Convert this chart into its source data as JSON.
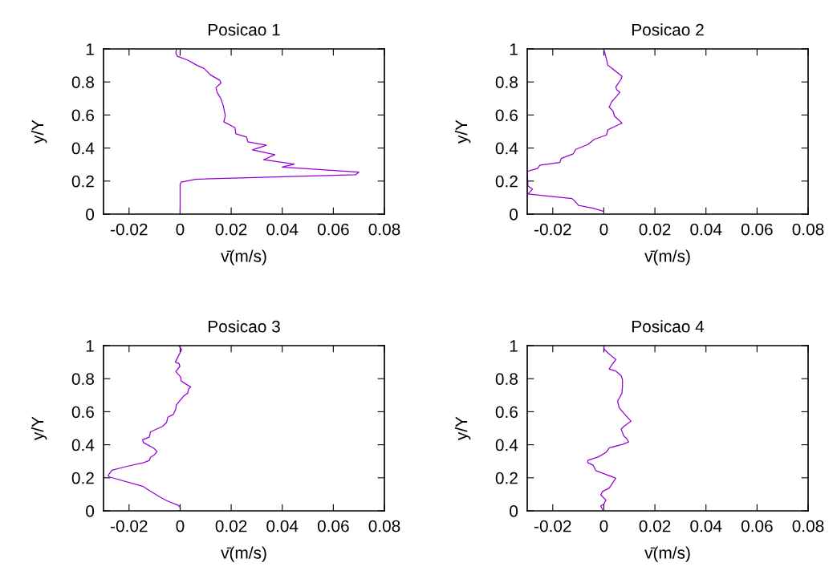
{
  "chart_data": [
    {
      "type": "line",
      "title": "Posicao 1",
      "xlabel": "v̄(m/s)",
      "ylabel": "y/Y",
      "xlim": [
        -0.03,
        0.08
      ],
      "ylim": [
        0,
        1
      ],
      "xticks": [
        -0.02,
        0,
        0.02,
        0.04,
        0.06,
        0.08
      ],
      "yticks": [
        0,
        0.2,
        0.4,
        0.6,
        0.8,
        1
      ],
      "grid": false,
      "series": [
        {
          "color": "#9400d3",
          "x": [
            0,
            0,
            0.0004,
            0.006,
            0.0687,
            0.07,
            0.04,
            0.0447,
            0.0327,
            0.0371,
            0.0283,
            0.0338,
            0.0265,
            0.026,
            0.0218,
            0.0215,
            0.0171,
            0.0177,
            0.0169,
            0.016,
            0.0145,
            0.014,
            0.016,
            0.0155,
            0.0119,
            0.0093,
            0.0067,
            0.003,
            -0.0011,
            -0.0017,
            -0.0014
          ],
          "values": [
            0,
            0.178,
            0.194,
            0.211,
            0.238,
            0.254,
            0.285,
            0.303,
            0.329,
            0.36,
            0.389,
            0.417,
            0.438,
            0.467,
            0.486,
            0.523,
            0.559,
            0.595,
            0.656,
            0.697,
            0.737,
            0.765,
            0.794,
            0.81,
            0.843,
            0.883,
            0.9,
            0.932,
            0.956,
            0.976,
            0.997
          ]
        }
      ]
    },
    {
      "type": "line",
      "title": "Posicao 2",
      "xlabel": "v̄(m/s)",
      "ylabel": "y/Y",
      "xlim": [
        -0.03,
        0.08
      ],
      "ylim": [
        0,
        1
      ],
      "xticks": [
        -0.02,
        0,
        0.02,
        0.04,
        0.06,
        0.08
      ],
      "yticks": [
        0,
        0.2,
        0.4,
        0.6,
        0.8,
        1
      ],
      "grid": false,
      "series": [
        {
          "color": "#9400d3",
          "x": [
            0,
            -0.0042,
            -0.0099,
            -0.0115,
            -0.0125,
            -0.0297,
            -0.0279,
            -0.0297,
            -0.03,
            -0.026,
            -0.025,
            -0.0172,
            -0.0167,
            -0.012,
            -0.011,
            -0.0063,
            -0.0036,
            0.001,
            0.0016,
            0.0071,
            0.0057,
            0.0042,
            0.0036,
            0.0021,
            0.0031,
            0.0042,
            0.0063,
            0.005,
            0.0047,
            0.0068,
            0.0071,
            0.0031,
            0.0016,
            0.001,
            0
          ],
          "values": [
            0.016,
            0.036,
            0.053,
            0.081,
            0.094,
            0.122,
            0.151,
            0.17,
            0.259,
            0.276,
            0.297,
            0.313,
            0.337,
            0.365,
            0.392,
            0.421,
            0.454,
            0.478,
            0.511,
            0.551,
            0.572,
            0.592,
            0.624,
            0.648,
            0.681,
            0.7,
            0.737,
            0.754,
            0.77,
            0.818,
            0.835,
            0.883,
            0.9,
            0.94,
            0.997
          ]
        }
      ]
    },
    {
      "type": "line",
      "title": "Posicao 3",
      "xlabel": "v̄(m/s)",
      "ylabel": "y/Y",
      "xlim": [
        -0.03,
        0.08
      ],
      "ylim": [
        0,
        1
      ],
      "xticks": [
        -0.02,
        0,
        0.02,
        0.04,
        0.06,
        0.08
      ],
      "yticks": [
        0,
        0.2,
        0.4,
        0.6,
        0.8,
        1
      ],
      "grid": false,
      "series": [
        {
          "color": "#9400d3",
          "x": [
            0.0002,
            -0.0006,
            -0.0053,
            -0.0079,
            -0.011,
            -0.0147,
            -0.0277,
            -0.0282,
            -0.0267,
            -0.0215,
            -0.0142,
            -0.0121,
            -0.0116,
            -0.01,
            -0.009,
            -0.0105,
            -0.0144,
            -0.0147,
            -0.0121,
            -0.0116,
            -0.0069,
            -0.0053,
            -0.0048,
            -0.0027,
            -0.0017,
            -0.0015,
            0.0015,
            0.003,
            0.0033,
            0.0041,
            0.002,
            0.0004,
            0.0002,
            -0.0017,
            -0.0001,
            -0.0004,
            -0.0019,
            -0.0011,
            0.0006,
            -0.0004
          ],
          "values": [
            0.016,
            0.032,
            0.062,
            0.084,
            0.113,
            0.149,
            0.205,
            0.214,
            0.246,
            0.267,
            0.292,
            0.305,
            0.324,
            0.34,
            0.36,
            0.381,
            0.413,
            0.43,
            0.446,
            0.478,
            0.511,
            0.535,
            0.567,
            0.583,
            0.616,
            0.64,
            0.697,
            0.713,
            0.737,
            0.75,
            0.77,
            0.786,
            0.81,
            0.843,
            0.875,
            0.891,
            0.9,
            0.924,
            0.976,
            0.997
          ]
        }
      ]
    },
    {
      "type": "line",
      "title": "Posicao 4",
      "xlabel": "v̄(m/s)",
      "ylabel": "y/Y",
      "xlim": [
        -0.03,
        0.08
      ],
      "ylim": [
        0,
        1
      ],
      "xticks": [
        -0.02,
        0,
        0.02,
        0.04,
        0.06,
        0.08
      ],
      "yticks": [
        0,
        0.2,
        0.4,
        0.6,
        0.8,
        1
      ],
      "grid": false,
      "series": [
        {
          "color": "#9400d3",
          "x": [
            -0.0005,
            -0.0012,
            0,
            0.0008,
            -0.0012,
            -0.0005,
            0.0021,
            0.0047,
            0.001,
            -0.0031,
            -0.0042,
            -0.0063,
            -0.0063,
            -0.0021,
            0.0008,
            0.0021,
            0.0073,
            0.0097,
            0.0089,
            0.0078,
            0.0068,
            0.0078,
            0.0106,
            0.0073,
            0.006,
            0.0054,
            0.0063,
            0.0071,
            0.0073,
            0.0073,
            0.0068,
            0.0047,
            0.0021,
            0.0031,
            0.0047,
            0.0016,
            0.0002,
            0
          ],
          "values": [
            0.008,
            0.029,
            0.041,
            0.065,
            0.097,
            0.117,
            0.138,
            0.198,
            0.219,
            0.243,
            0.276,
            0.292,
            0.305,
            0.327,
            0.353,
            0.381,
            0.402,
            0.417,
            0.438,
            0.454,
            0.494,
            0.511,
            0.543,
            0.6,
            0.624,
            0.665,
            0.689,
            0.713,
            0.754,
            0.794,
            0.818,
            0.846,
            0.859,
            0.883,
            0.916,
            0.956,
            0.977,
            0.997
          ]
        }
      ]
    }
  ]
}
